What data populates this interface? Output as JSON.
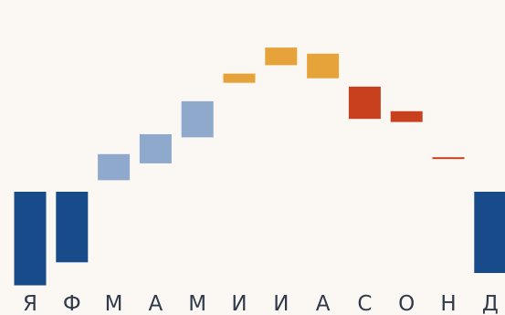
{
  "chart_data": {
    "type": "bar",
    "subtype": "waterfall",
    "categories": [
      "Я",
      "Ф",
      "М",
      "А",
      "М",
      "И",
      "И",
      "А",
      "С",
      "О",
      "Н",
      "Д"
    ],
    "series": [
      {
        "start": [
          -5,
          -5,
          -3.5,
          -1.3,
          2.1,
          9.2,
          13.8,
          13,
          8.7,
          4.1,
          -0.5,
          -5
        ],
        "end": [
          -17.2,
          -14.2,
          -0.1,
          2.5,
          6.8,
          10.4,
          11.5,
          9.8,
          4.5,
          5.5,
          -0.7,
          -15.6
        ]
      }
    ],
    "colors": [
      "#174b8a",
      "#174b8a",
      "#8ea9cc",
      "#8ea9cc",
      "#8ea9cc",
      "#e6a33a",
      "#e6a33a",
      "#e6a33a",
      "#c9401f",
      "#c9401f",
      "#c9401f",
      "#174b8a"
    ],
    "ylim": [
      -18,
      18
    ],
    "grid": false,
    "legend": "none",
    "title": "",
    "xlabel": "",
    "ylabel": ""
  }
}
